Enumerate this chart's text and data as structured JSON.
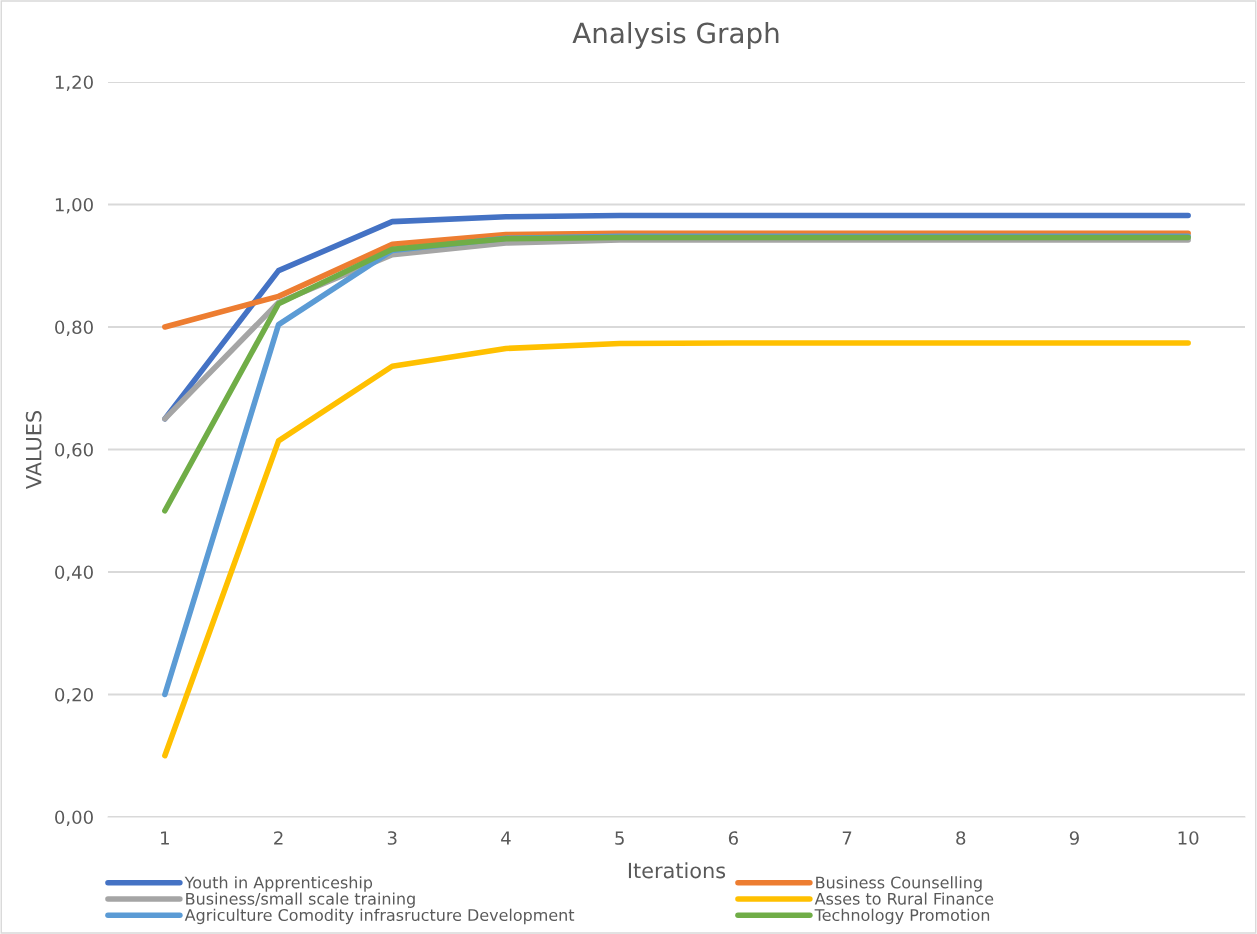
{
  "chart_data": {
    "type": "line",
    "title": "Analysis Graph",
    "xlabel": "Iterations",
    "ylabel": "VALUES",
    "categories": [
      "1",
      "2",
      "3",
      "4",
      "5",
      "6",
      "7",
      "8",
      "9",
      "10"
    ],
    "series": [
      {
        "name": "Youth in Apprenticeship",
        "color": "#4472c4",
        "values": [
          0.65,
          0.892,
          0.972,
          0.98,
          0.982,
          0.982,
          0.982,
          0.982,
          0.982,
          0.982
        ]
      },
      {
        "name": "Business Counselling",
        "color": "#ed7d31",
        "values": [
          0.8,
          0.85,
          0.935,
          0.951,
          0.953,
          0.953,
          0.953,
          0.953,
          0.953,
          0.953
        ]
      },
      {
        "name": "Business/small scale training",
        "color": "#a5a5a5",
        "values": [
          0.65,
          0.84,
          0.918,
          0.937,
          0.942,
          0.942,
          0.942,
          0.942,
          0.942,
          0.942
        ]
      },
      {
        "name": "Asses to Rural Finance",
        "color": "#ffc000",
        "values": [
          0.1,
          0.614,
          0.736,
          0.765,
          0.773,
          0.774,
          0.774,
          0.774,
          0.774,
          0.774
        ]
      },
      {
        "name": "Agriculture Comodity infrasructure Development",
        "color": "#5b9bd5",
        "values": [
          0.2,
          0.804,
          0.925,
          0.945,
          0.948,
          0.948,
          0.948,
          0.948,
          0.948,
          0.948
        ]
      },
      {
        "name": "Technology Promotion",
        "color": "#70ad47",
        "values": [
          0.5,
          0.838,
          0.927,
          0.944,
          0.946,
          0.946,
          0.946,
          0.946,
          0.946,
          0.946
        ]
      }
    ],
    "ylim": [
      0,
      1.2
    ],
    "yticks": [
      {
        "value": 0,
        "label": "0,00"
      },
      {
        "value": 0.2,
        "label": "0,20"
      },
      {
        "value": 0.4,
        "label": "0,40"
      },
      {
        "value": 0.6,
        "label": "0,60"
      },
      {
        "value": 0.8,
        "label": "0,80"
      },
      {
        "value": 1.0,
        "label": "1,00"
      },
      {
        "value": 1.2,
        "label": "1,20"
      }
    ],
    "grid": "y",
    "legend": "bottom",
    "marker": "none",
    "line_style": "solid"
  }
}
